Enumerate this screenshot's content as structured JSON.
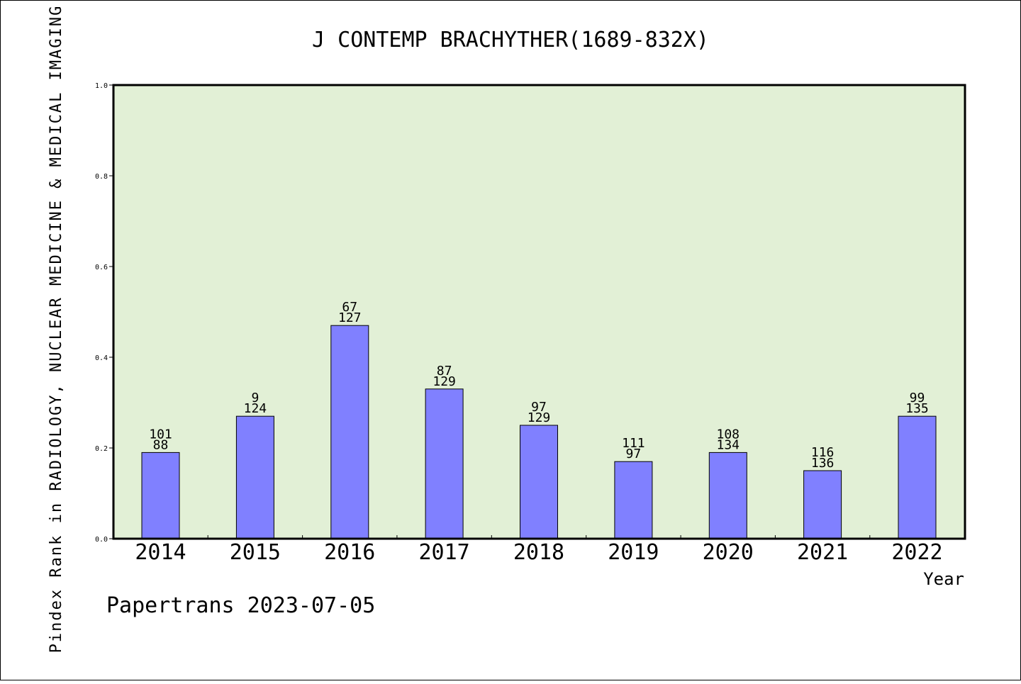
{
  "chart_data": {
    "type": "bar",
    "title": "J CONTEMP BRACHYTHER(1689-832X)",
    "xlabel": "Year",
    "ylabel": "Pindex Rank in RADIOLOGY, NUCLEAR MEDICINE & MEDICAL IMAGING",
    "ylim": [
      0,
      1.0
    ],
    "yticks": [
      "0.0",
      "0.2",
      "0.4",
      "0.6",
      "0.8",
      "1.0"
    ],
    "categories": [
      "2014",
      "2015",
      "2016",
      "2017",
      "2018",
      "2019",
      "2020",
      "2021",
      "2022"
    ],
    "values": [
      0.19,
      0.27,
      0.47,
      0.33,
      0.25,
      0.17,
      0.19,
      0.15,
      0.27
    ],
    "labels_top": [
      "101",
      "9",
      "67",
      "87",
      "97",
      "111",
      "108",
      "116",
      "99"
    ],
    "labels_bottom": [
      "88",
      "124",
      "127",
      "129",
      "129",
      "97",
      "134",
      "136",
      "135"
    ],
    "grid": false,
    "colors": {
      "plot_background": "#e2f0d6",
      "bar_fill": "#8080ff",
      "bar_stroke": "#000000"
    }
  },
  "footer": "Papertrans 2023-07-05"
}
